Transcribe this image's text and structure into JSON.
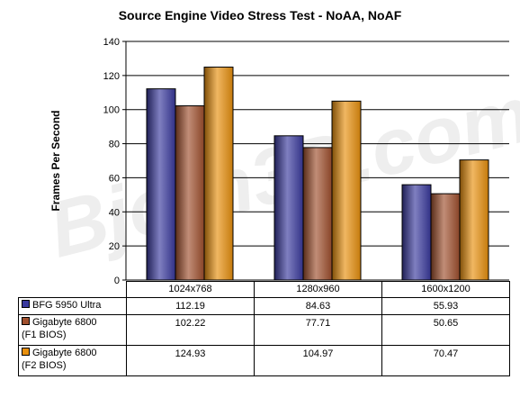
{
  "chart_data": {
    "type": "bar",
    "title": "Source Engine Video Stress Test - NoAA, NoAF",
    "ylabel": "Frames Per Second",
    "xlabel": "",
    "ylim": [
      0,
      140
    ],
    "yticks": [
      0,
      20,
      40,
      60,
      80,
      100,
      120,
      140
    ],
    "grid": true,
    "legend": "data table below chart",
    "categories": [
      "1024x768",
      "1280x960",
      "1600x1200"
    ],
    "series": [
      {
        "name_lines": [
          "BFG 5950 Ultra"
        ],
        "color": "#3a3a9e",
        "values": [
          112.19,
          84.63,
          55.93
        ],
        "value_labels": [
          "112.19",
          "84.63",
          "55.93"
        ]
      },
      {
        "name_lines": [
          "Gigabyte 6800",
          "(F1 BIOS)"
        ],
        "color": "#a0502e",
        "values": [
          102.22,
          77.71,
          50.65
        ],
        "value_labels": [
          "102.22",
          "77.71",
          "50.65"
        ]
      },
      {
        "name_lines": [
          "Gigabyte 6800",
          "(F2 BIOS)"
        ],
        "color": "#e8900e",
        "values": [
          124.93,
          104.97,
          70.47
        ],
        "value_labels": [
          "124.93",
          "104.97",
          "70.47"
        ]
      }
    ],
    "watermark": "Bjorn3D.com"
  }
}
